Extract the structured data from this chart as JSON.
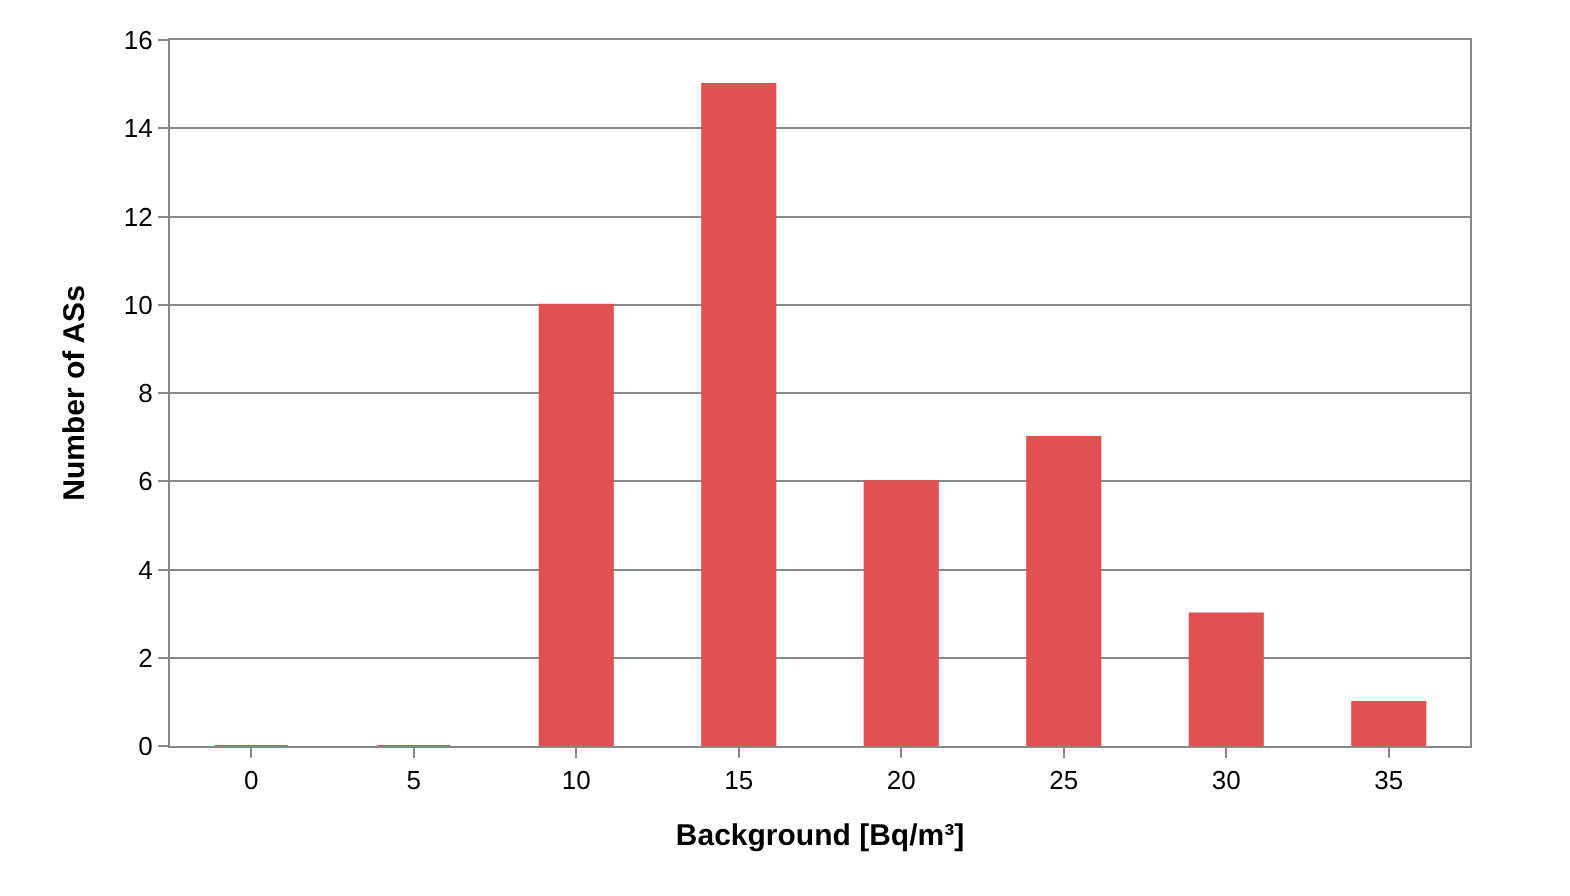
{
  "chart_data": {
    "type": "bar",
    "xlabel": "Background [Bq/m³]",
    "ylabel": "Number of ASs",
    "categories": [
      "0",
      "5",
      "10",
      "15",
      "20",
      "25",
      "30",
      "35"
    ],
    "values": [
      0,
      0,
      10,
      15,
      6,
      7,
      3,
      1
    ],
    "color": "#e05252",
    "ylim": [
      0,
      16
    ],
    "yticks": [
      0,
      2,
      4,
      6,
      8,
      10,
      12,
      14,
      16
    ],
    "grid": "y",
    "legend": false
  }
}
